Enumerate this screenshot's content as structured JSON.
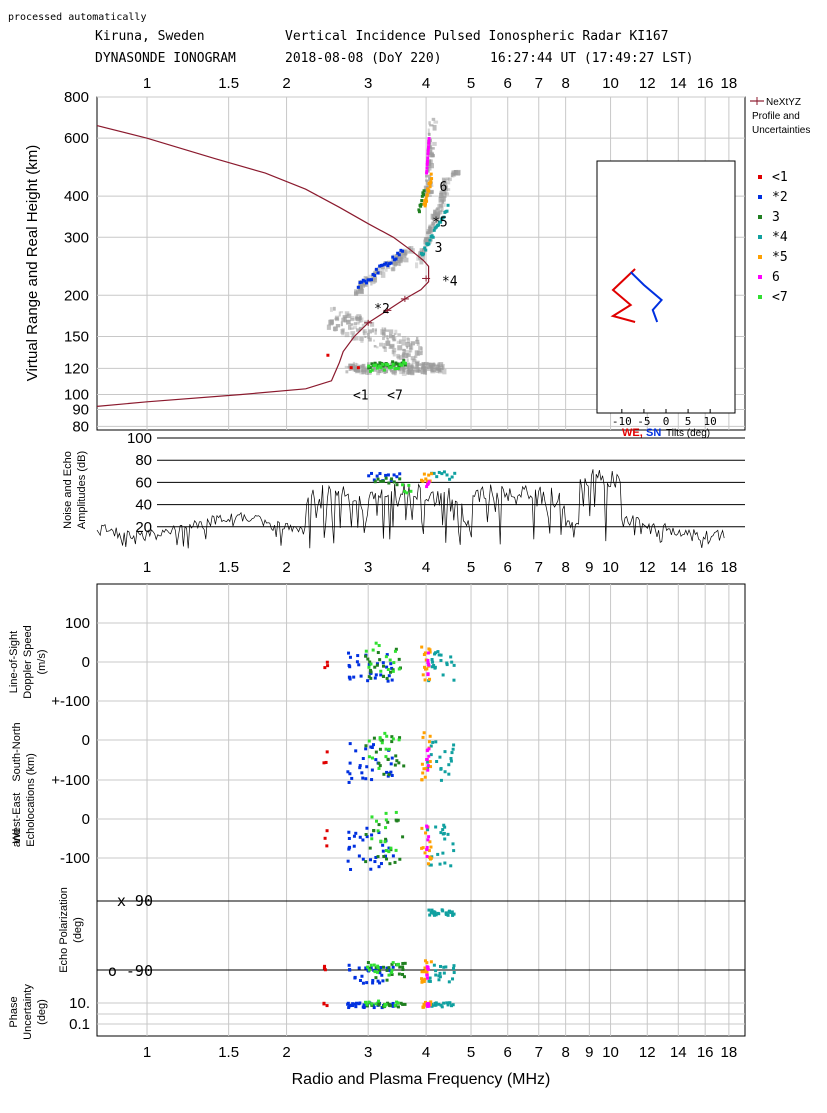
{
  "header": {
    "note": "processed automatically",
    "station": "Kiruna, Sweden",
    "title": "Vertical Incidence Pulsed Ionospheric Radar KI167",
    "product": "DYNASONDE IONOGRAM",
    "date": "2018-08-08 (DoY 220)",
    "time": "16:27:44 UT (17:49:27 LST)"
  },
  "colors": {
    "profile": "#8b1a2e",
    "red": "#e00000",
    "blue": "#0030e0",
    "green": "#208020",
    "cyan": "#10a0a0",
    "orange": "#ffa000",
    "magenta": "#ff00ff",
    "lime": "#30e030",
    "grid": "#c8c8c8",
    "echo_gray": "#9a9a9a"
  },
  "chart_data": [
    {
      "type": "scatter",
      "name": "ionogram",
      "ylabel": "Virtual Range and Real Height (km)",
      "xscale": "log",
      "yscale": "log",
      "xlim": [
        0.78,
        19.5
      ],
      "ylim": [
        78,
        800
      ],
      "x_ticks": [
        "1",
        "1.5",
        "2",
        "3",
        "4",
        "5",
        "6",
        "7",
        "8",
        "10",
        "12",
        "14",
        "16",
        "18"
      ],
      "y_ticks": [
        "800",
        "600",
        "400",
        "300",
        "200",
        "150",
        "120",
        "100",
        "90",
        "80"
      ],
      "legend_profile": [
        "NeXtYZ",
        "Profile and",
        "Uncertainties"
      ],
      "legend": [
        {
          "symbol": "<1",
          "color": "red"
        },
        {
          "symbol": "*2",
          "color": "blue"
        },
        {
          "symbol": "3",
          "color": "green"
        },
        {
          "symbol": "*4",
          "color": "cyan"
        },
        {
          "symbol": "*5",
          "color": "orange"
        },
        {
          "symbol": "6",
          "color": "magenta"
        },
        {
          "symbol": "<7",
          "color": "lime"
        }
      ],
      "annotations": [
        {
          "text": "6",
          "x": 4.15,
          "y": 430
        },
        {
          "text": "*5",
          "x": 4.0,
          "y": 335
        },
        {
          "text": "3",
          "x": 4.05,
          "y": 280
        },
        {
          "text": "*4",
          "x": 4.2,
          "y": 222
        },
        {
          "text": "*2",
          "x": 3.0,
          "y": 183
        },
        {
          "text": "<1",
          "x": 2.7,
          "y": 100
        },
        {
          "text": "<7",
          "x": 3.2,
          "y": 100
        }
      ],
      "profile": {
        "x": [
          0.78,
          1.0,
          1.4,
          1.8,
          2.2,
          2.6,
          3.0,
          3.4,
          3.7,
          3.95,
          4.05,
          4.05,
          3.9,
          3.6,
          3.3,
          3.0,
          2.8,
          2.65,
          2.6,
          2.5,
          2.2,
          1.6,
          1.0,
          0.78
        ],
        "y": [
          655,
          600,
          520,
          470,
          420,
          370,
          330,
          300,
          275,
          255,
          245,
          220,
          208,
          195,
          180,
          165,
          150,
          135,
          125,
          110,
          104,
          100,
          95,
          92
        ]
      },
      "tilt_inset": {
        "x_ticks": [
          "-10",
          "-5",
          "0",
          "5",
          "10"
        ],
        "label_we": "WE,",
        "label_sn": "SN",
        "label_rest": "Tilts (deg)"
      }
    },
    {
      "type": "line",
      "name": "noise-amplitudes",
      "ylabel": [
        "Noise and Echo",
        "Amplitudes (dB)"
      ],
      "y_ticks": [
        "100",
        "80",
        "60",
        "40",
        "20"
      ],
      "ylim": [
        0,
        100
      ]
    },
    {
      "type": "scatter",
      "name": "doppler-echolocations",
      "x_ticks": [
        "1",
        "1.5",
        "2",
        "3",
        "4",
        "5",
        "6",
        "7",
        "8",
        "9",
        "10",
        "12",
        "14",
        "16",
        "18"
      ],
      "xlabel": "Radio and Plasma Frequency (MHz)",
      "doppler": {
        "ylabel": [
          "Line-of-Sight",
          "Doppler Speed",
          "(m/s)"
        ],
        "ticks": [
          "100",
          "0",
          "+-100"
        ]
      },
      "locations": {
        "ylabel_sn": "South-North",
        "ylabel_and": "and",
        "ylabel_we": "West-East",
        "ylabel_echo": "Echolocations (km)",
        "sn_ticks": [
          "0",
          "+-100"
        ],
        "we_ticks": [
          "0",
          "-100"
        ]
      },
      "polarization": {
        "ylabel": [
          "Echo Polarization",
          "(deg)"
        ],
        "x_label": "x 90",
        "o_label": "o -90"
      },
      "phase": {
        "ylabel": [
          "Phase",
          "Uncertainty",
          "(deg)"
        ],
        "ticks": [
          "10.",
          "0.1"
        ]
      }
    }
  ]
}
